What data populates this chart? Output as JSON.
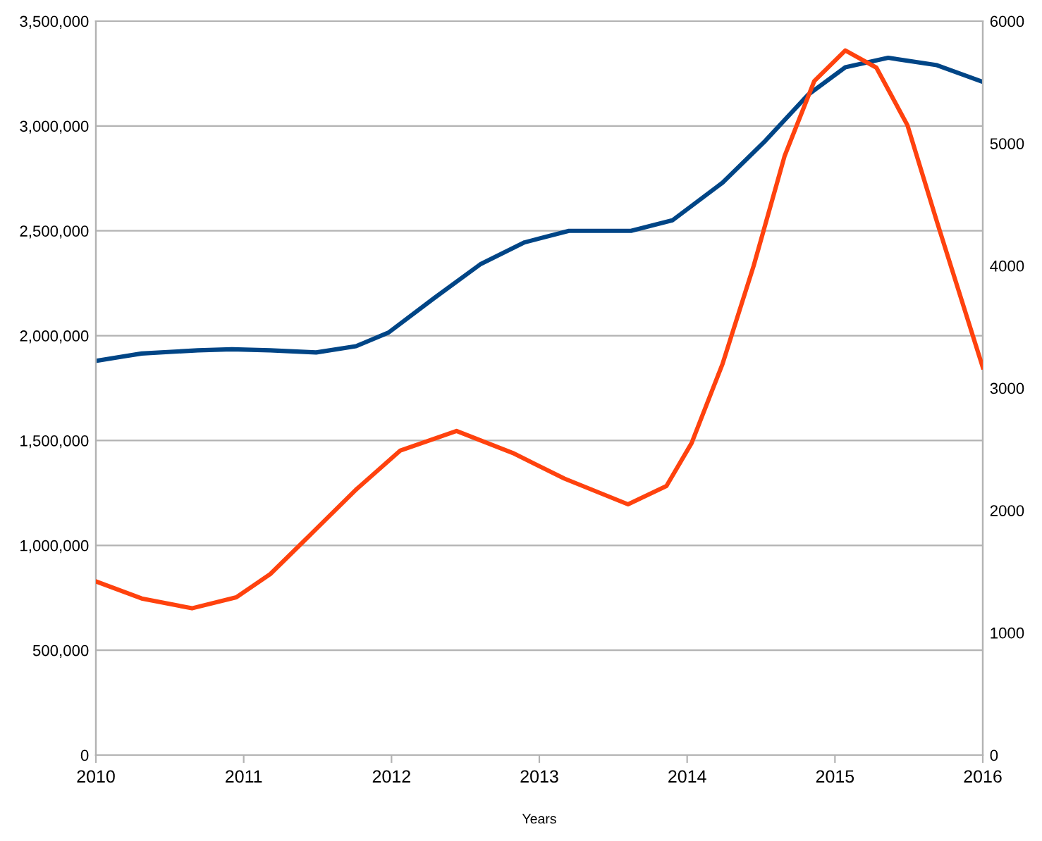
{
  "chart_data": {
    "type": "line",
    "xlabel": "Years",
    "series": [
      {
        "color": "#004586",
        "x": [
          2010,
          2010.31,
          2010.69,
          2010.92,
          2011.18,
          2011.49,
          2011.76,
          2011.98,
          2012.29,
          2012.6,
          2012.9,
          2013.2,
          2013.62,
          2013.9,
          2014.24,
          2014.53,
          2014.82,
          2015.07,
          2015.36,
          2015.69,
          2016
        ],
        "values": [
          1880000,
          1915000,
          1930000,
          1935000,
          1930000,
          1920000,
          1950000,
          2015000,
          2180000,
          2340000,
          2445000,
          2500000,
          2500000,
          2550000,
          2730000,
          2930000,
          3150000,
          3280000,
          3325000,
          3290000,
          3210000
        ]
      },
      {
        "color": "#ff420e",
        "axis": "y2",
        "x": [
          2010,
          2010.31,
          2010.65,
          2010.95,
          2011.18,
          2011.45,
          2011.76,
          2012.06,
          2012.44,
          2012.82,
          2013.17,
          2013.6,
          2013.86,
          2014.03,
          2014.24,
          2014.45,
          2014.66,
          2014.86,
          2015.07,
          2015.28,
          2015.49,
          2015.69,
          2016
        ],
        "values": [
          1420,
          1280,
          1200,
          1290,
          1480,
          1800,
          2170,
          2490,
          2650,
          2470,
          2260,
          2050,
          2200,
          2550,
          3200,
          4000,
          4900,
          5510,
          5760,
          5620,
          5150,
          4360,
          3170
        ]
      }
    ],
    "xlim": [
      2010,
      2016
    ],
    "xticks": [
      2010,
      2011,
      2012,
      2013,
      2014,
      2015,
      2016
    ],
    "ylim": [
      0,
      3500000
    ],
    "yticks": [
      {
        "value": 0,
        "label": "0"
      },
      {
        "value": 500000,
        "label": "500,000"
      },
      {
        "value": 1000000,
        "label": "1,000,000"
      },
      {
        "value": 1500000,
        "label": "1,500,000"
      },
      {
        "value": 2000000,
        "label": "2,000,000"
      },
      {
        "value": 2500000,
        "label": "2,500,000"
      },
      {
        "value": 3000000,
        "label": "3,000,000"
      },
      {
        "value": 3500000,
        "label": "3,500,000"
      }
    ],
    "y2lim": [
      0,
      6000
    ],
    "y2ticks": [
      0,
      1000,
      2000,
      3000,
      4000,
      5000,
      6000
    ],
    "grid": "y",
    "marker": "none",
    "line_style": "solid"
  }
}
